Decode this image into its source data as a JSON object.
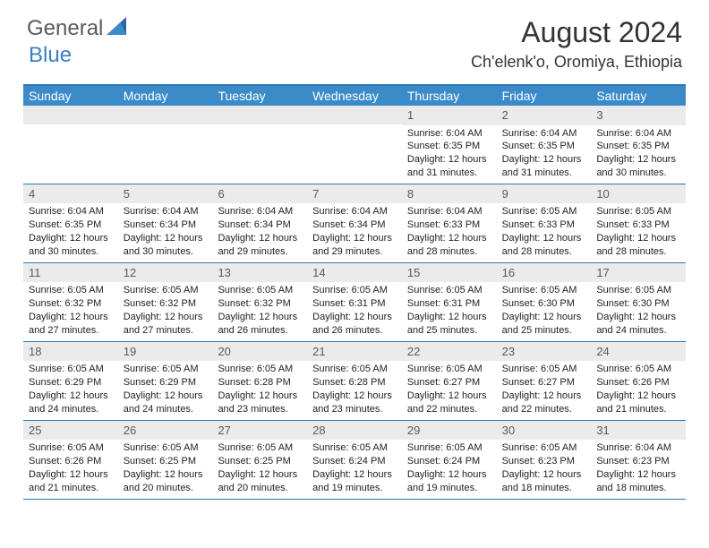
{
  "logo": {
    "general": "General",
    "blue": "Blue"
  },
  "title": "August 2024",
  "location": "Ch'elenk'o, Oromiya, Ethiopia",
  "colors": {
    "header_bg": "#3b8bc9",
    "header_text": "#ffffff",
    "border": "#2e75b6",
    "daynum_bg": "#ebebeb",
    "daynum_text": "#5a5a5a",
    "body_text": "#222222",
    "logo_gray": "#5a5a5a",
    "logo_blue": "#3b7fc4",
    "page_bg": "#ffffff"
  },
  "weekdays": [
    "Sunday",
    "Monday",
    "Tuesday",
    "Wednesday",
    "Thursday",
    "Friday",
    "Saturday"
  ],
  "weeks": [
    [
      {
        "n": "",
        "sr": "",
        "ss": "",
        "dl": ""
      },
      {
        "n": "",
        "sr": "",
        "ss": "",
        "dl": ""
      },
      {
        "n": "",
        "sr": "",
        "ss": "",
        "dl": ""
      },
      {
        "n": "",
        "sr": "",
        "ss": "",
        "dl": ""
      },
      {
        "n": "1",
        "sr": "Sunrise: 6:04 AM",
        "ss": "Sunset: 6:35 PM",
        "dl": "Daylight: 12 hours and 31 minutes."
      },
      {
        "n": "2",
        "sr": "Sunrise: 6:04 AM",
        "ss": "Sunset: 6:35 PM",
        "dl": "Daylight: 12 hours and 31 minutes."
      },
      {
        "n": "3",
        "sr": "Sunrise: 6:04 AM",
        "ss": "Sunset: 6:35 PM",
        "dl": "Daylight: 12 hours and 30 minutes."
      }
    ],
    [
      {
        "n": "4",
        "sr": "Sunrise: 6:04 AM",
        "ss": "Sunset: 6:35 PM",
        "dl": "Daylight: 12 hours and 30 minutes."
      },
      {
        "n": "5",
        "sr": "Sunrise: 6:04 AM",
        "ss": "Sunset: 6:34 PM",
        "dl": "Daylight: 12 hours and 30 minutes."
      },
      {
        "n": "6",
        "sr": "Sunrise: 6:04 AM",
        "ss": "Sunset: 6:34 PM",
        "dl": "Daylight: 12 hours and 29 minutes."
      },
      {
        "n": "7",
        "sr": "Sunrise: 6:04 AM",
        "ss": "Sunset: 6:34 PM",
        "dl": "Daylight: 12 hours and 29 minutes."
      },
      {
        "n": "8",
        "sr": "Sunrise: 6:04 AM",
        "ss": "Sunset: 6:33 PM",
        "dl": "Daylight: 12 hours and 28 minutes."
      },
      {
        "n": "9",
        "sr": "Sunrise: 6:05 AM",
        "ss": "Sunset: 6:33 PM",
        "dl": "Daylight: 12 hours and 28 minutes."
      },
      {
        "n": "10",
        "sr": "Sunrise: 6:05 AM",
        "ss": "Sunset: 6:33 PM",
        "dl": "Daylight: 12 hours and 28 minutes."
      }
    ],
    [
      {
        "n": "11",
        "sr": "Sunrise: 6:05 AM",
        "ss": "Sunset: 6:32 PM",
        "dl": "Daylight: 12 hours and 27 minutes."
      },
      {
        "n": "12",
        "sr": "Sunrise: 6:05 AM",
        "ss": "Sunset: 6:32 PM",
        "dl": "Daylight: 12 hours and 27 minutes."
      },
      {
        "n": "13",
        "sr": "Sunrise: 6:05 AM",
        "ss": "Sunset: 6:32 PM",
        "dl": "Daylight: 12 hours and 26 minutes."
      },
      {
        "n": "14",
        "sr": "Sunrise: 6:05 AM",
        "ss": "Sunset: 6:31 PM",
        "dl": "Daylight: 12 hours and 26 minutes."
      },
      {
        "n": "15",
        "sr": "Sunrise: 6:05 AM",
        "ss": "Sunset: 6:31 PM",
        "dl": "Daylight: 12 hours and 25 minutes."
      },
      {
        "n": "16",
        "sr": "Sunrise: 6:05 AM",
        "ss": "Sunset: 6:30 PM",
        "dl": "Daylight: 12 hours and 25 minutes."
      },
      {
        "n": "17",
        "sr": "Sunrise: 6:05 AM",
        "ss": "Sunset: 6:30 PM",
        "dl": "Daylight: 12 hours and 24 minutes."
      }
    ],
    [
      {
        "n": "18",
        "sr": "Sunrise: 6:05 AM",
        "ss": "Sunset: 6:29 PM",
        "dl": "Daylight: 12 hours and 24 minutes."
      },
      {
        "n": "19",
        "sr": "Sunrise: 6:05 AM",
        "ss": "Sunset: 6:29 PM",
        "dl": "Daylight: 12 hours and 24 minutes."
      },
      {
        "n": "20",
        "sr": "Sunrise: 6:05 AM",
        "ss": "Sunset: 6:28 PM",
        "dl": "Daylight: 12 hours and 23 minutes."
      },
      {
        "n": "21",
        "sr": "Sunrise: 6:05 AM",
        "ss": "Sunset: 6:28 PM",
        "dl": "Daylight: 12 hours and 23 minutes."
      },
      {
        "n": "22",
        "sr": "Sunrise: 6:05 AM",
        "ss": "Sunset: 6:27 PM",
        "dl": "Daylight: 12 hours and 22 minutes."
      },
      {
        "n": "23",
        "sr": "Sunrise: 6:05 AM",
        "ss": "Sunset: 6:27 PM",
        "dl": "Daylight: 12 hours and 22 minutes."
      },
      {
        "n": "24",
        "sr": "Sunrise: 6:05 AM",
        "ss": "Sunset: 6:26 PM",
        "dl": "Daylight: 12 hours and 21 minutes."
      }
    ],
    [
      {
        "n": "25",
        "sr": "Sunrise: 6:05 AM",
        "ss": "Sunset: 6:26 PM",
        "dl": "Daylight: 12 hours and 21 minutes."
      },
      {
        "n": "26",
        "sr": "Sunrise: 6:05 AM",
        "ss": "Sunset: 6:25 PM",
        "dl": "Daylight: 12 hours and 20 minutes."
      },
      {
        "n": "27",
        "sr": "Sunrise: 6:05 AM",
        "ss": "Sunset: 6:25 PM",
        "dl": "Daylight: 12 hours and 20 minutes."
      },
      {
        "n": "28",
        "sr": "Sunrise: 6:05 AM",
        "ss": "Sunset: 6:24 PM",
        "dl": "Daylight: 12 hours and 19 minutes."
      },
      {
        "n": "29",
        "sr": "Sunrise: 6:05 AM",
        "ss": "Sunset: 6:24 PM",
        "dl": "Daylight: 12 hours and 19 minutes."
      },
      {
        "n": "30",
        "sr": "Sunrise: 6:05 AM",
        "ss": "Sunset: 6:23 PM",
        "dl": "Daylight: 12 hours and 18 minutes."
      },
      {
        "n": "31",
        "sr": "Sunrise: 6:04 AM",
        "ss": "Sunset: 6:23 PM",
        "dl": "Daylight: 12 hours and 18 minutes."
      }
    ]
  ]
}
